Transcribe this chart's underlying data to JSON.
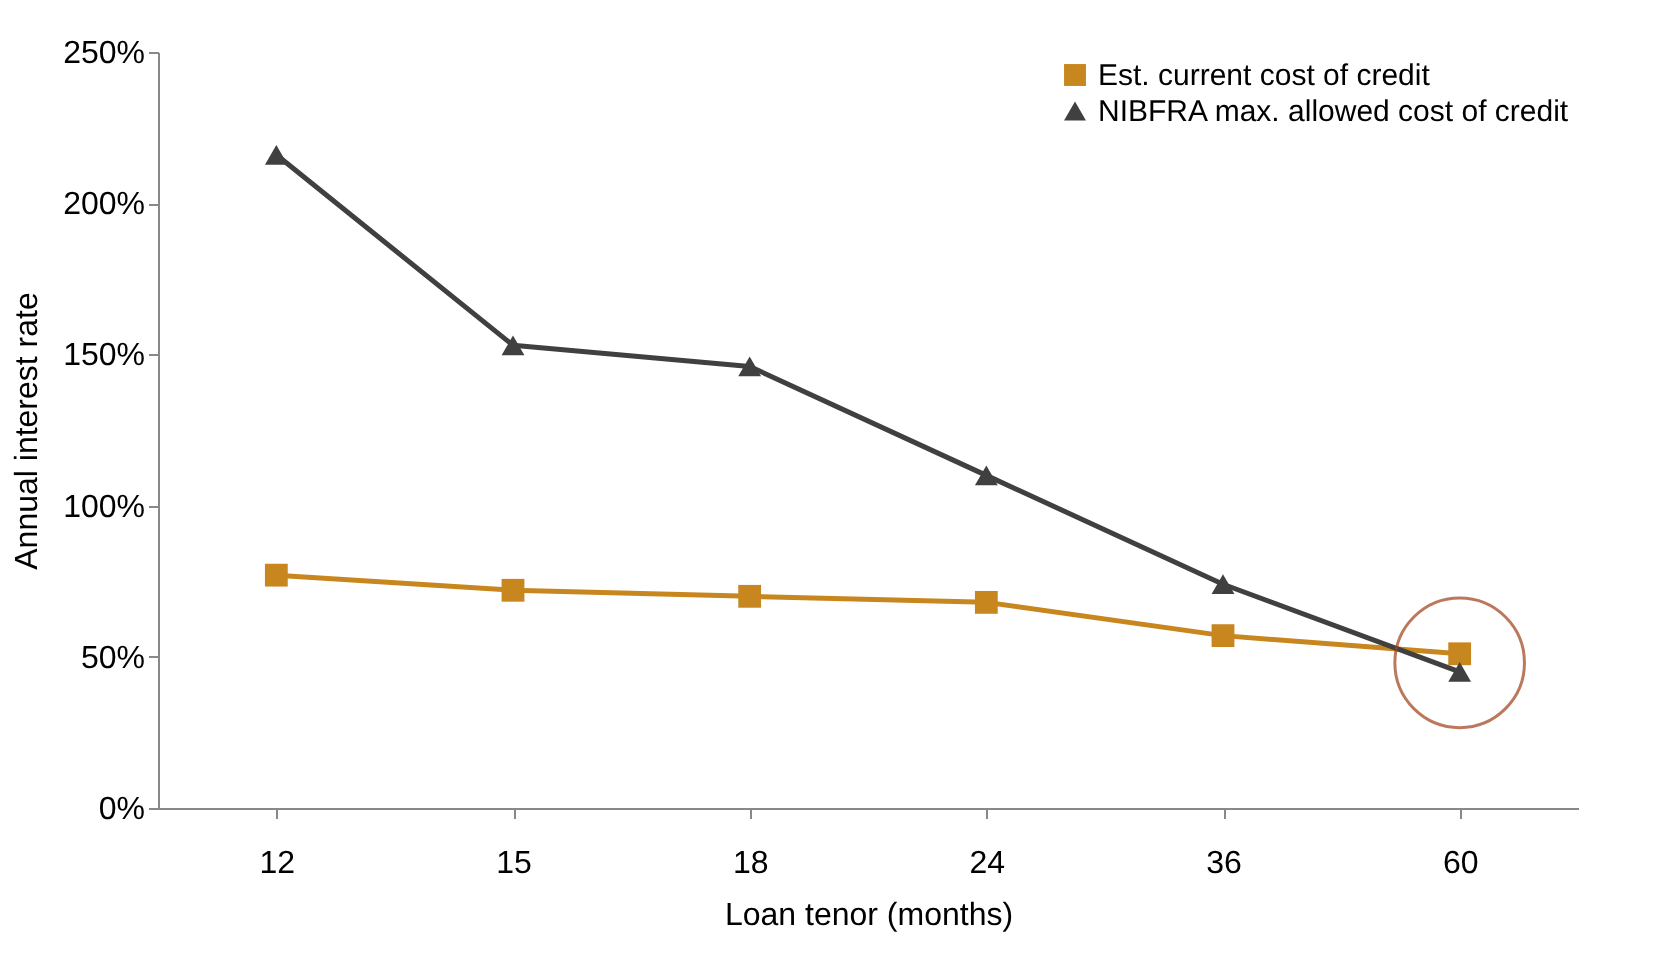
{
  "chart_data": {
    "type": "line",
    "xlabel": "Loan tenor (months)",
    "ylabel": "Annual interest rate",
    "categories": [
      "12",
      "15",
      "18",
      "24",
      "36",
      "60"
    ],
    "series": [
      {
        "name": "Est. current cost of credit",
        "color": "#c8861f",
        "marker": "square",
        "values": [
          77,
          72,
          70,
          68,
          57,
          51
        ]
      },
      {
        "name": "NIBFRA max. allowed cost of credit",
        "color": "#404040",
        "marker": "triangle",
        "values": [
          216,
          153,
          146,
          110,
          74,
          45
        ]
      }
    ],
    "ylim": [
      0,
      250
    ],
    "yticks": [
      {
        "value": 0,
        "label": "0%"
      },
      {
        "value": 50,
        "label": "50%"
      },
      {
        "value": 100,
        "label": "100%"
      },
      {
        "value": 150,
        "label": "150%"
      },
      {
        "value": 200,
        "label": "200%"
      },
      {
        "value": 250,
        "label": "250%"
      }
    ],
    "grid": false,
    "legend": "top right",
    "line_style": "solid"
  }
}
